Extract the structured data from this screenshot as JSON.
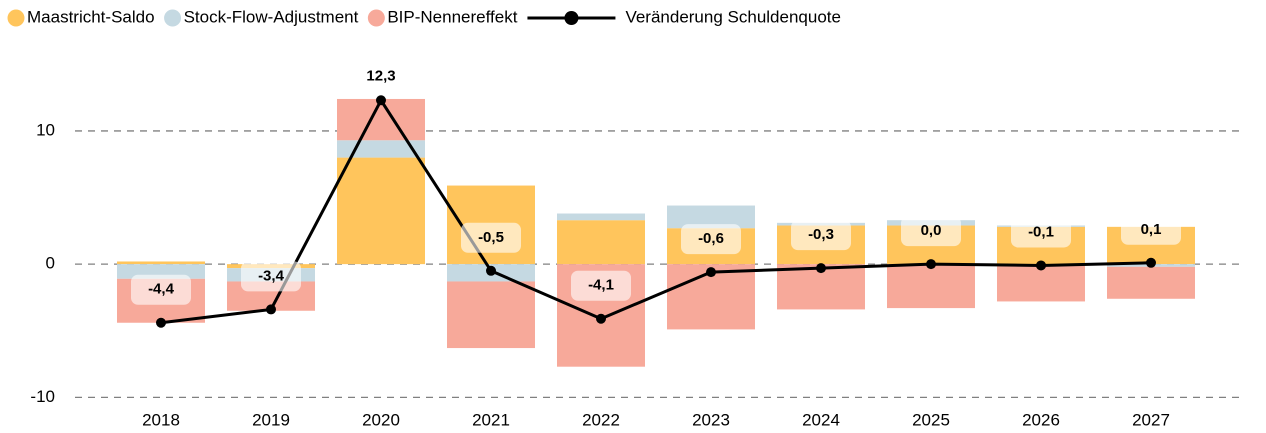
{
  "chart_data": {
    "type": "bar",
    "stacked": true,
    "categories": [
      "2018",
      "2019",
      "2020",
      "2021",
      "2022",
      "2023",
      "2024",
      "2025",
      "2026",
      "2027"
    ],
    "series": [
      {
        "name": "Maastricht-Saldo",
        "color": "#FFC55C",
        "values": [
          0.2,
          -0.3,
          8.0,
          5.9,
          3.3,
          2.7,
          2.9,
          2.9,
          2.8,
          2.8
        ]
      },
      {
        "name": "Stock-Flow-Adjustment",
        "color": "#C5D9E2",
        "values": [
          -1.1,
          -1.0,
          1.3,
          -1.3,
          0.5,
          1.7,
          0.2,
          0.4,
          0.1,
          -0.2
        ]
      },
      {
        "name": "BIP-Nennereffekt",
        "color": "#F7A99A",
        "values": [
          -3.3,
          -2.2,
          3.1,
          -5.0,
          -7.7,
          -4.9,
          -3.4,
          -3.3,
          -2.8,
          -2.4
        ]
      },
      {
        "name": "Veränderung Schuldenquote",
        "color": "#000000",
        "type": "line",
        "values": [
          -4.4,
          -3.4,
          12.3,
          -0.5,
          -4.1,
          -0.6,
          -0.3,
          0.0,
          -0.1,
          0.1
        ],
        "value_labels": [
          "-4,4",
          "-3,4",
          "12,3",
          "-0,5",
          "-4,1",
          "-0,6",
          "-0,3",
          "0,0",
          "-0,1",
          "0,1"
        ]
      }
    ],
    "ylim": [
      -10.5,
      14.5
    ],
    "yticks": [
      -10,
      0,
      10
    ],
    "grid": true,
    "legend": "top"
  }
}
